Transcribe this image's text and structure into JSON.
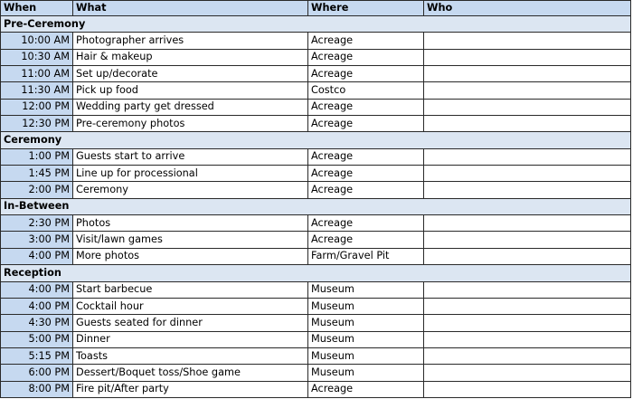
{
  "headers": {
    "when": "When",
    "what": "What",
    "where": "Where",
    "who": "Who"
  },
  "colors": {
    "header_bg": "#c6d9f0",
    "section_bg": "#dce6f2",
    "when_bg": "#c6d9f0"
  },
  "sections": [
    {
      "title": "Pre-Ceremony",
      "rows": [
        {
          "when": "10:00 AM",
          "what": "Photographer arrives",
          "where": "Acreage",
          "who": ""
        },
        {
          "when": "10:30 AM",
          "what": "Hair & makeup",
          "where": "Acreage",
          "who": ""
        },
        {
          "when": "11:00 AM",
          "what": "Set up/decorate",
          "where": "Acreage",
          "who": ""
        },
        {
          "when": "11:30 AM",
          "what": "Pick up food",
          "where": "Costco",
          "who": ""
        },
        {
          "when": "12:00 PM",
          "what": "Wedding party get dressed",
          "where": "Acreage",
          "who": ""
        },
        {
          "when": "12:30 PM",
          "what": "Pre-ceremony photos",
          "where": "Acreage",
          "who": ""
        }
      ]
    },
    {
      "title": "Ceremony",
      "rows": [
        {
          "when": "1:00 PM",
          "what": "Guests start to arrive",
          "where": "Acreage",
          "who": ""
        },
        {
          "when": "1:45 PM",
          "what": "Line up for processional",
          "where": "Acreage",
          "who": ""
        },
        {
          "when": "2:00 PM",
          "what": "Ceremony",
          "where": "Acreage",
          "who": ""
        }
      ]
    },
    {
      "title": "In-Between",
      "rows": [
        {
          "when": "2:30 PM",
          "what": "Photos",
          "where": "Acreage",
          "who": ""
        },
        {
          "when": "3:00 PM",
          "what": "Visit/lawn games",
          "where": "Acreage",
          "who": ""
        },
        {
          "when": "4:00 PM",
          "what": "More photos",
          "where": "Farm/Gravel Pit",
          "who": ""
        }
      ]
    },
    {
      "title": "Reception",
      "rows": [
        {
          "when": "4:00 PM",
          "what": "Start barbecue",
          "where": "Museum",
          "who": ""
        },
        {
          "when": "4:00 PM",
          "what": "Cocktail hour",
          "where": "Museum",
          "who": ""
        },
        {
          "when": "4:30 PM",
          "what": "Guests seated for dinner",
          "where": "Museum",
          "who": ""
        },
        {
          "when": "5:00 PM",
          "what": "Dinner",
          "where": "Museum",
          "who": ""
        },
        {
          "when": "5:15 PM",
          "what": "Toasts",
          "where": "Museum",
          "who": ""
        },
        {
          "when": "6:00 PM",
          "what": "Dessert/Boquet toss/Shoe game",
          "where": "Museum",
          "who": ""
        },
        {
          "when": "8:00 PM",
          "what": "Fire pit/After party",
          "where": "Acreage",
          "who": ""
        }
      ]
    }
  ]
}
